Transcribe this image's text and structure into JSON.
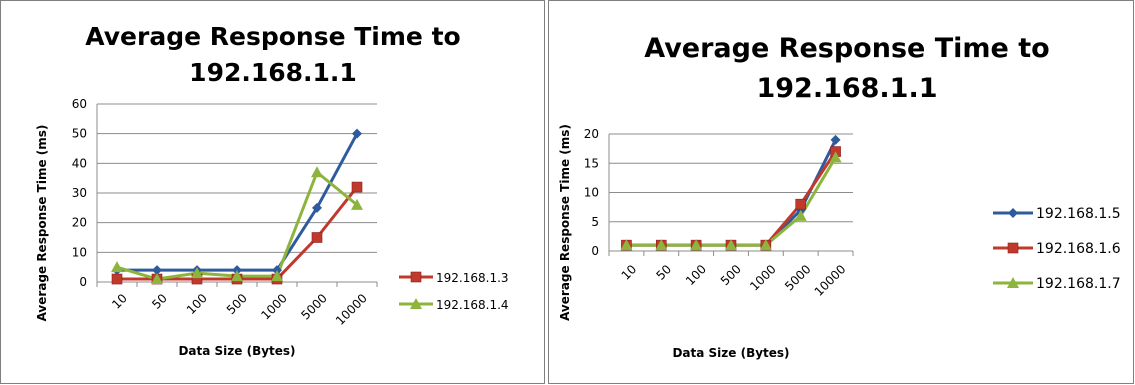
{
  "chart_data": [
    {
      "type": "line",
      "title_lines": [
        "Average Response Time to",
        "192.168.1.1"
      ],
      "xlabel": "Data Size (Bytes)",
      "ylabel": "Average Response Time (ms)",
      "categories": [
        "10",
        "50",
        "100",
        "500",
        "1000",
        "5000",
        "10000"
      ],
      "ylim": [
        0,
        60
      ],
      "yticks": [
        "0",
        "10",
        "20",
        "30",
        "40",
        "50",
        "60"
      ],
      "grid": true,
      "legend_position": "right",
      "series": [
        {
          "name": "",
          "color": "#2e5b9e",
          "marker": "diamond",
          "values": [
            4,
            4,
            4,
            4,
            4,
            25,
            50
          ]
        },
        {
          "name": "192.168.1.3",
          "color": "#c0392b",
          "marker": "square",
          "values": [
            1,
            1,
            1,
            1,
            1,
            15,
            32
          ]
        },
        {
          "name": "192.168.1.4",
          "color": "#8db43c",
          "marker": "triangle",
          "values": [
            5,
            1,
            3,
            2,
            2,
            37,
            26
          ]
        }
      ]
    },
    {
      "type": "line",
      "title_lines": [
        "Average Response Time to",
        "192.168.1.1"
      ],
      "xlabel": "Data Size (Bytes)",
      "ylabel": "Average Response Time (ms)",
      "categories": [
        "10",
        "50",
        "100",
        "500",
        "1000",
        "5000",
        "10000"
      ],
      "ylim": [
        0,
        20
      ],
      "yticks": [
        "0",
        "5",
        "10",
        "15",
        "20"
      ],
      "grid": true,
      "legend_position": "right",
      "series": [
        {
          "name": "192.168.1.5",
          "color": "#2e5b9e",
          "marker": "diamond",
          "values": [
            1,
            1,
            1,
            1,
            1,
            7,
            19
          ]
        },
        {
          "name": "192.168.1.6",
          "color": "#c0392b",
          "marker": "square",
          "values": [
            1,
            1,
            1,
            1,
            1,
            8,
            17
          ]
        },
        {
          "name": "192.168.1.7",
          "color": "#8db43c",
          "marker": "triangle",
          "values": [
            1,
            1,
            1,
            1,
            1,
            6,
            16
          ]
        }
      ]
    }
  ]
}
